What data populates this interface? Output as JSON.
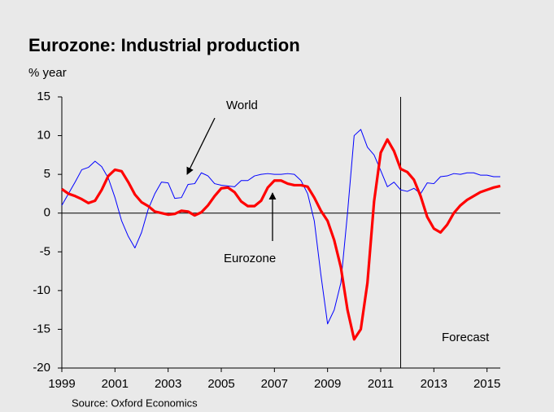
{
  "chart_data": {
    "type": "line",
    "title": "Eurozone: Industrial production",
    "subtitle": "% year",
    "source": "Source: Oxford Economics",
    "annotations": {
      "world": "World",
      "eurozone": "Eurozone",
      "forecast": "Forecast"
    },
    "forecast_x": 2011.75,
    "x": [
      1999,
      1999.25,
      1999.5,
      1999.75,
      2000,
      2000.25,
      2000.5,
      2000.75,
      2001,
      2001.25,
      2001.5,
      2001.75,
      2002,
      2002.25,
      2002.5,
      2002.75,
      2003,
      2003.25,
      2003.5,
      2003.75,
      2004,
      2004.25,
      2004.5,
      2004.75,
      2005,
      2005.25,
      2005.5,
      2005.75,
      2006,
      2006.25,
      2006.5,
      2006.75,
      2007,
      2007.25,
      2007.5,
      2007.75,
      2008,
      2008.25,
      2008.5,
      2008.75,
      2009,
      2009.25,
      2009.5,
      2009.75,
      2010,
      2010.25,
      2010.5,
      2010.75,
      2011,
      2011.25,
      2011.5,
      2011.75,
      2012,
      2012.25,
      2012.5,
      2012.75,
      2013,
      2013.25,
      2013.5,
      2013.75,
      2014,
      2014.25,
      2014.5,
      2014.75,
      2015,
      2015.25,
      2015.5
    ],
    "series": [
      {
        "name": "World",
        "color": "#0000ff",
        "values": [
          1,
          2.5,
          4,
          5.6,
          5.9,
          6.7,
          6,
          4.5,
          2,
          -1,
          -3,
          -4.5,
          -2.5,
          0.5,
          2.5,
          4,
          3.9,
          1.9,
          2,
          3.7,
          3.8,
          5.2,
          4.8,
          3.8,
          3.6,
          3.5,
          3.4,
          4.2,
          4.2,
          4.8,
          5,
          5.1,
          5,
          5,
          5.1,
          5,
          4.2,
          2.5,
          -1,
          -8,
          -14.3,
          -12.5,
          -9,
          0,
          10,
          10.8,
          8.5,
          7.5,
          5.5,
          3.4,
          4,
          3,
          2.8,
          3.2,
          2.5,
          3.9,
          3.8,
          4.7,
          4.8,
          5.1,
          5,
          5.2,
          5.2,
          4.9,
          4.9,
          4.7,
          4.7
        ]
      },
      {
        "name": "Eurozone",
        "color": "#ff0000",
        "values": [
          3.1,
          2.5,
          2.2,
          1.8,
          1.3,
          1.6,
          3,
          4.8,
          5.6,
          5.4,
          4,
          2.4,
          1.4,
          0.9,
          0.2,
          0,
          -0.2,
          -0.1,
          0.3,
          0.2,
          -0.3,
          0.1,
          1,
          2.2,
          3.2,
          3.3,
          2.7,
          1.5,
          0.9,
          0.9,
          1.6,
          3.3,
          4.2,
          4.2,
          3.8,
          3.6,
          3.6,
          3.4,
          2,
          0.3,
          -1,
          -3.5,
          -7,
          -12.5,
          -16.3,
          -15,
          -9,
          1.5,
          7.8,
          9.5,
          8,
          5.7,
          5.3,
          4.3,
          2.2,
          -0.5,
          -2,
          -2.5,
          -1.5,
          0,
          1,
          1.7,
          2.2,
          2.7,
          3,
          3.3,
          3.5
        ]
      }
    ],
    "xlim": [
      1999,
      2015.5
    ],
    "xticks": [
      1999,
      2001,
      2003,
      2005,
      2007,
      2009,
      2011,
      2013,
      2015
    ],
    "ylim": [
      -20,
      15
    ],
    "yticks": [
      -20,
      -15,
      -10,
      -5,
      0,
      5,
      10,
      15
    ]
  }
}
